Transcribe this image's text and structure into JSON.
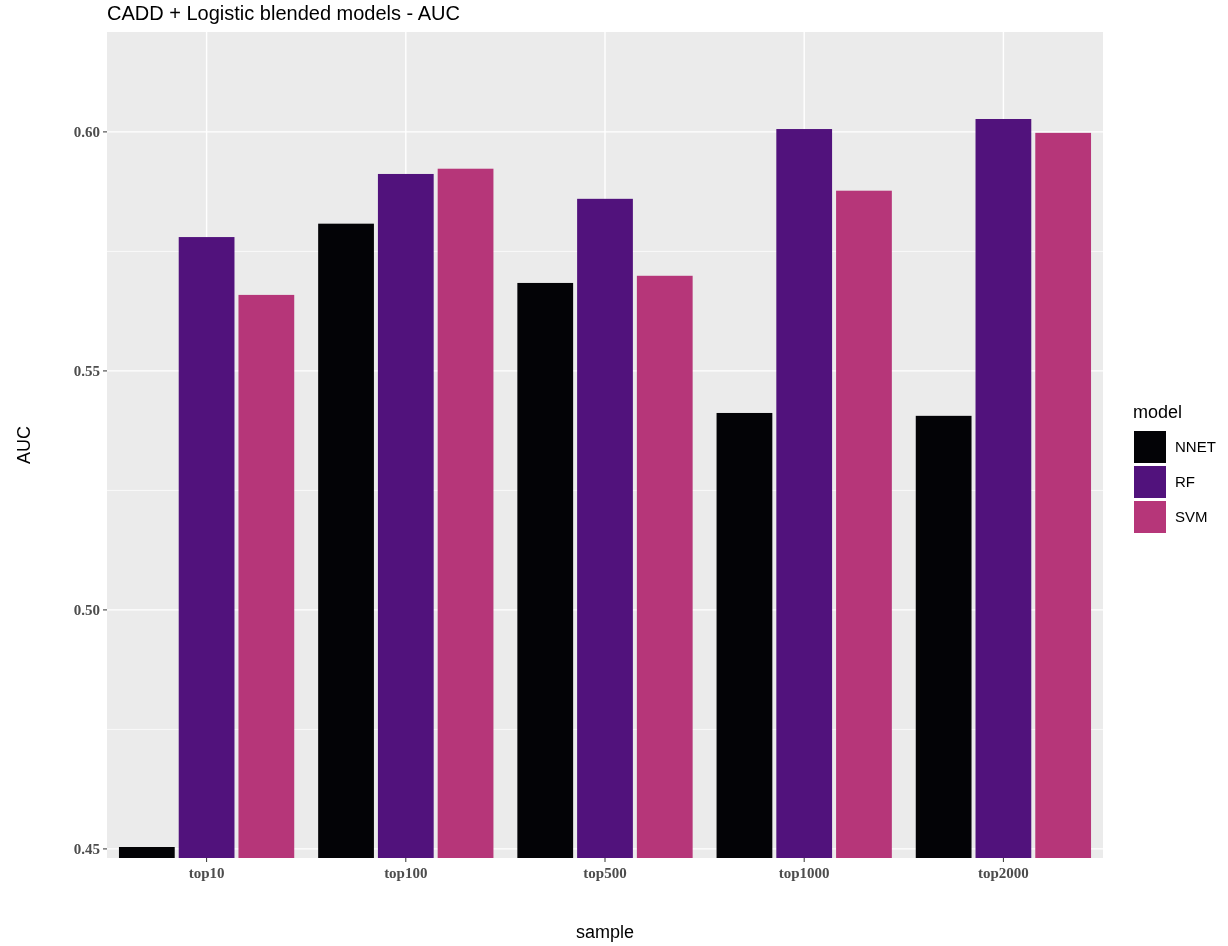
{
  "chart_data": {
    "type": "bar",
    "title": "CADD + Logistic blended models - AUC",
    "xlabel": "sample",
    "ylabel": "AUC",
    "legend_title": "model",
    "legend": "right",
    "grid": true,
    "categories": [
      "top10",
      "top100",
      "top500",
      "top1000",
      "top2000"
    ],
    "series": [
      {
        "name": "NNET",
        "color": "#030306",
        "values": [
          0.4504,
          0.5808,
          0.5684,
          0.5412,
          0.5406
        ]
      },
      {
        "name": "RF",
        "color": "#51127c",
        "values": [
          0.578,
          0.5912,
          0.586,
          0.6006,
          0.6027
        ]
      },
      {
        "name": "SVM",
        "color": "#b63679",
        "values": [
          0.5659,
          0.5923,
          0.5699,
          0.5877,
          0.5998
        ]
      }
    ],
    "ylim": [
      0.4481,
      0.6209
    ],
    "yticks": [
      {
        "value": 0.45,
        "label": "0.45"
      },
      {
        "value": 0.5,
        "label": "0.50"
      },
      {
        "value": 0.55,
        "label": "0.55"
      },
      {
        "value": 0.6,
        "label": "0.60"
      }
    ]
  }
}
